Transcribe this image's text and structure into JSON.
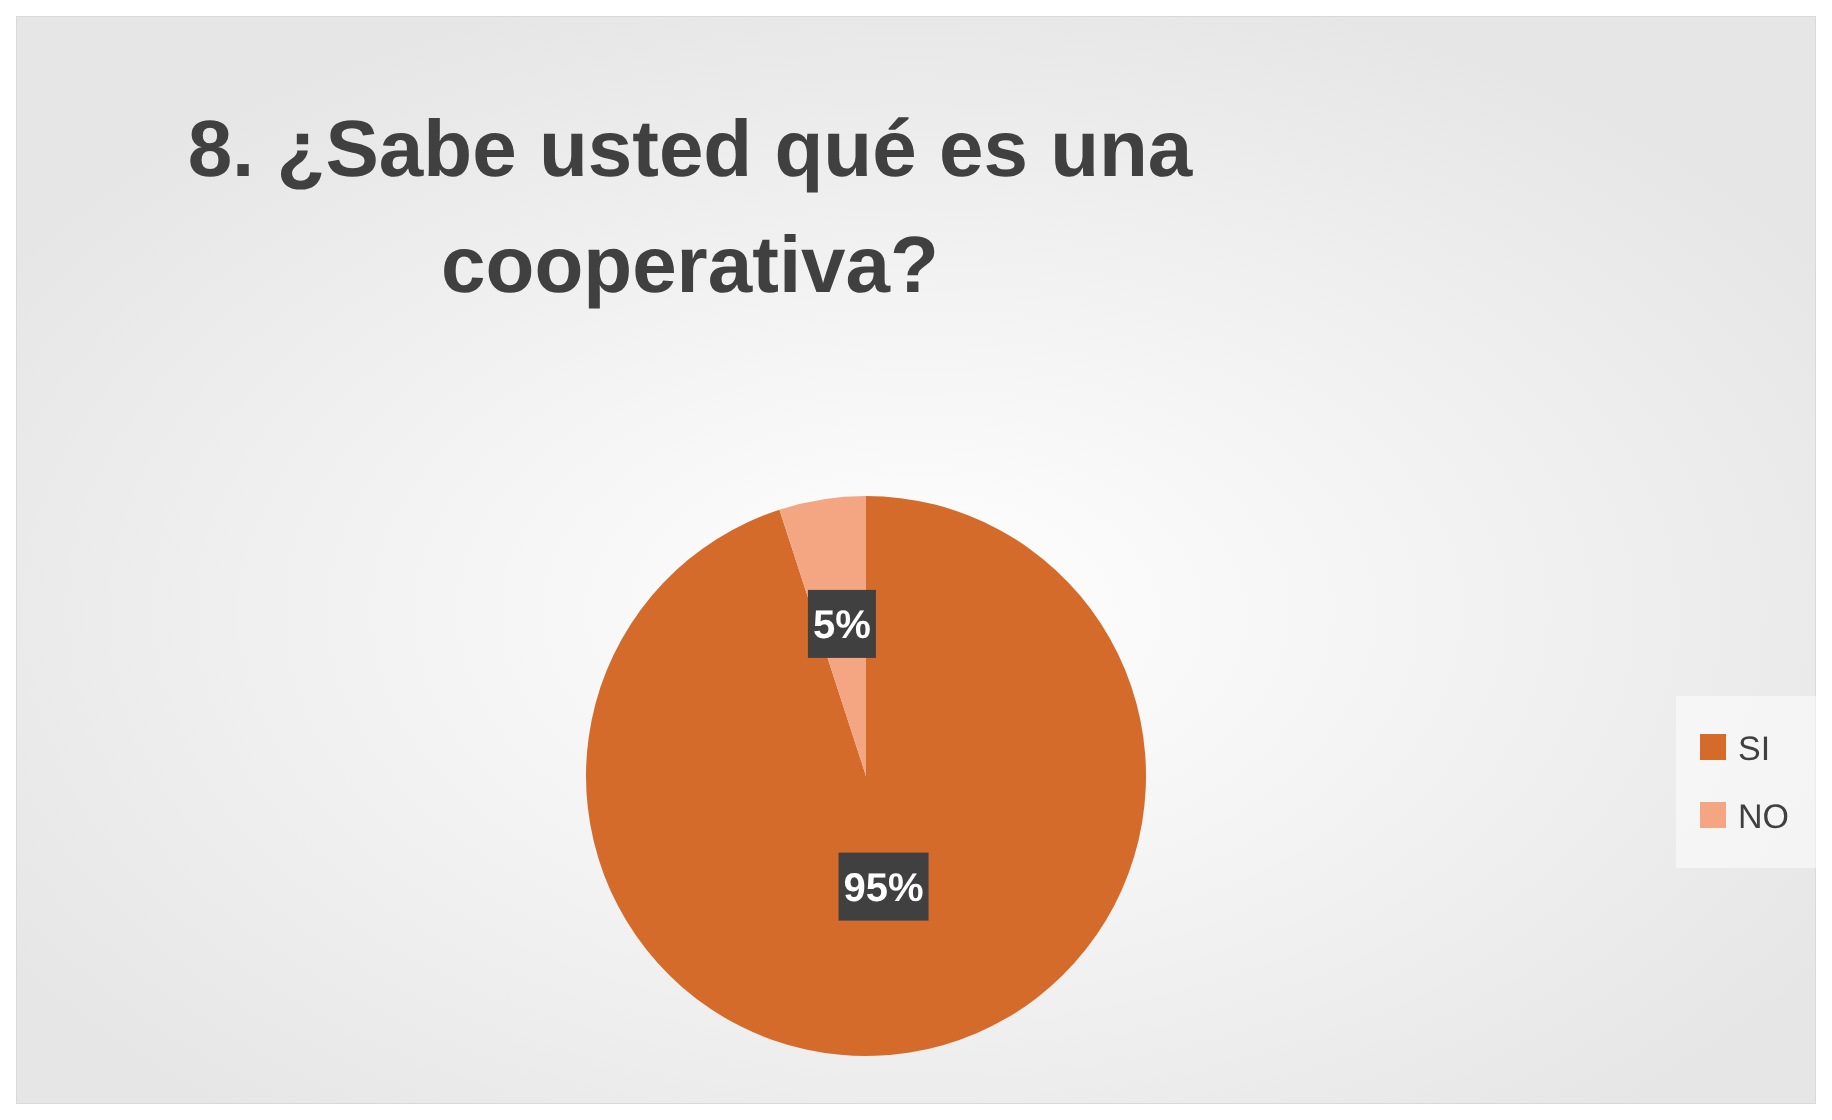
{
  "chart_data": {
    "type": "pie",
    "title": "8. ¿Sabe usted qué es una cooperativa?",
    "categories": [
      "SI",
      "NO"
    ],
    "values": [
      95,
      5
    ],
    "colors": [
      "#d46b2a",
      "#f4a582"
    ],
    "value_labels": [
      "95%",
      "5%"
    ],
    "legend": "right"
  }
}
